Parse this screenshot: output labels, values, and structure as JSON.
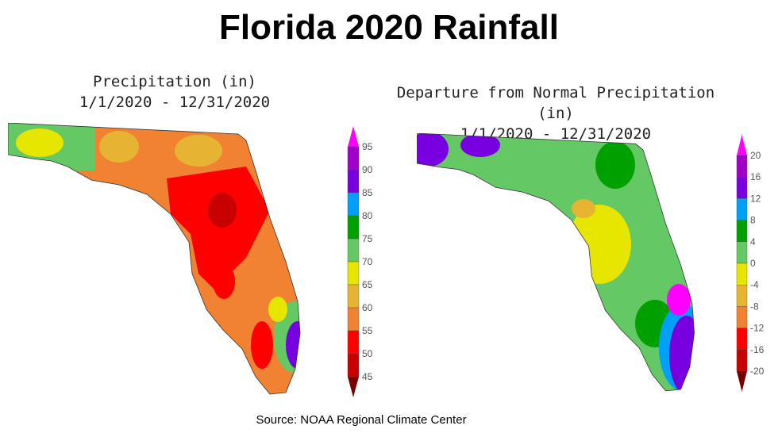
{
  "title": "Florida 2020 Rainfall",
  "left_map": {
    "title_line1": "Precipitation (in)",
    "title_line2": "1/1/2020 - 12/31/2020",
    "colorbar": {
      "ticks": [
        "95",
        "90",
        "85",
        "80",
        "75",
        "70",
        "65",
        "60",
        "55",
        "50",
        "45"
      ],
      "colors": [
        "#a000c8",
        "#7800e0",
        "#00a0f8",
        "#00a000",
        "#64c864",
        "#e6e600",
        "#e6b432",
        "#f08232",
        "#ff0000",
        "#c80000"
      ],
      "over_color": "#ff00ff",
      "under_color": "#780000"
    }
  },
  "right_map": {
    "title_line1": "Departure from Normal Precipitation (in)",
    "title_line2": "1/1/2020 - 12/31/2020",
    "colorbar": {
      "ticks": [
        "20",
        "16",
        "12",
        "8",
        "4",
        "0",
        "-4",
        "-8",
        "-12",
        "-16",
        "-20"
      ],
      "colors": [
        "#a000c8",
        "#7800e0",
        "#00a0f8",
        "#00a000",
        "#64c864",
        "#e6e600",
        "#e6b432",
        "#f08232",
        "#ff0000",
        "#c80000"
      ],
      "over_color": "#ff00ff",
      "under_color": "#780000"
    }
  },
  "source": "Source:  NOAA Regional Climate Center"
}
